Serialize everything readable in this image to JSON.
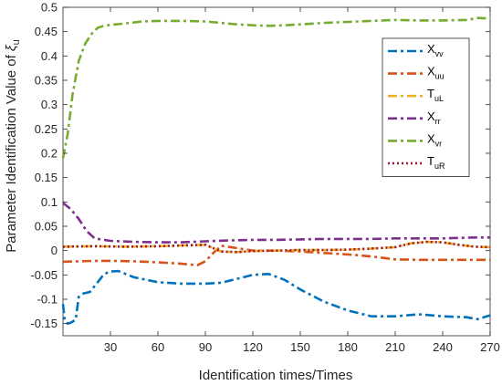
{
  "chart_data": {
    "type": "line",
    "xlabel": "Identification times/Times",
    "ylabel": {
      "main": "Parameter Identification Value of ",
      "symbol": "ξ",
      "sub": "u"
    },
    "xlim": [
      0,
      270
    ],
    "ylim": [
      -0.175,
      0.5
    ],
    "xticks": [
      30,
      60,
      90,
      120,
      150,
      180,
      210,
      240,
      270
    ],
    "yticks": [
      -0.15,
      -0.1,
      -0.05,
      0,
      0.05,
      0.1,
      0.15,
      0.2,
      0.25,
      0.3,
      0.35,
      0.4,
      0.45,
      0.5
    ],
    "ytick_labels": [
      "-0.15",
      "-0.1",
      "-0.05",
      "0",
      "0.05",
      "0.1",
      "0.15",
      "0.2",
      "0.25",
      "0.3",
      "0.35",
      "0.4",
      "0.45",
      "0.5"
    ],
    "grid": false,
    "legend_position": "top-right",
    "series": [
      {
        "name": "X",
        "sub": "vv",
        "color": "#0072BD",
        "dash": "10,4,3,4",
        "x": [
          0,
          1,
          2,
          3,
          5,
          8,
          10,
          13,
          17,
          22,
          26,
          30,
          35,
          45,
          60,
          75,
          90,
          100,
          110,
          120,
          130,
          140,
          150,
          165,
          180,
          195,
          210,
          225,
          240,
          255,
          262,
          270
        ],
        "y": [
          -0.11,
          -0.14,
          -0.148,
          -0.15,
          -0.148,
          -0.142,
          -0.095,
          -0.088,
          -0.085,
          -0.065,
          -0.048,
          -0.043,
          -0.042,
          -0.055,
          -0.065,
          -0.068,
          -0.068,
          -0.066,
          -0.058,
          -0.05,
          -0.048,
          -0.06,
          -0.08,
          -0.105,
          -0.123,
          -0.135,
          -0.135,
          -0.131,
          -0.135,
          -0.137,
          -0.141,
          -0.133
        ]
      },
      {
        "name": "X",
        "sub": "uu",
        "color": "#D95319",
        "dash": "10,4,3,4",
        "x": [
          0,
          10,
          20,
          30,
          45,
          60,
          75,
          85,
          90,
          95,
          100,
          110,
          120,
          135,
          150,
          165,
          180,
          195,
          210,
          225,
          240,
          255,
          270
        ],
        "y": [
          -0.023,
          -0.022,
          -0.021,
          -0.021,
          -0.022,
          -0.024,
          -0.027,
          -0.03,
          -0.022,
          -0.005,
          0.01,
          0.005,
          0.0,
          0.0,
          -0.002,
          -0.005,
          -0.008,
          -0.012,
          -0.018,
          -0.019,
          -0.019,
          -0.019,
          -0.019
        ]
      },
      {
        "name": "T",
        "sub": "uL",
        "color": "#EDB120",
        "dash": "10,4,3,4",
        "x": [
          0,
          20,
          40,
          60,
          80,
          90,
          95,
          100,
          110,
          120,
          135,
          150,
          165,
          180,
          195,
          210,
          220,
          230,
          240,
          250,
          260,
          270
        ],
        "y": [
          0.008,
          0.009,
          0.008,
          0.009,
          0.011,
          0.012,
          0.005,
          -0.002,
          -0.003,
          -0.001,
          0.0,
          0.001,
          0.001,
          0.002,
          0.004,
          0.007,
          0.015,
          0.018,
          0.017,
          0.012,
          0.008,
          0.007
        ]
      },
      {
        "name": "X",
        "sub": "rr",
        "color": "#7E2F8E",
        "dash": "10,4,3,4",
        "x": [
          0,
          5,
          10,
          15,
          20,
          30,
          45,
          60,
          75,
          90,
          105,
          120,
          135,
          150,
          165,
          180,
          195,
          210,
          225,
          240,
          250,
          260,
          270
        ],
        "y": [
          0.098,
          0.085,
          0.065,
          0.04,
          0.025,
          0.02,
          0.018,
          0.017,
          0.017,
          0.019,
          0.021,
          0.022,
          0.022,
          0.023,
          0.024,
          0.024,
          0.024,
          0.025,
          0.025,
          0.025,
          0.026,
          0.027,
          0.027
        ]
      },
      {
        "name": "X",
        "sub": "vr",
        "color": "#77AC30",
        "dash": "10,4,3,4",
        "x": [
          0,
          3,
          6,
          10,
          14,
          18,
          22,
          26,
          30,
          40,
          50,
          60,
          75,
          90,
          100,
          110,
          120,
          130,
          140,
          150,
          165,
          180,
          195,
          210,
          225,
          240,
          255,
          262,
          270
        ],
        "y": [
          0.19,
          0.24,
          0.32,
          0.39,
          0.425,
          0.445,
          0.458,
          0.462,
          0.464,
          0.467,
          0.471,
          0.472,
          0.472,
          0.471,
          0.468,
          0.465,
          0.463,
          0.462,
          0.463,
          0.465,
          0.468,
          0.47,
          0.472,
          0.474,
          0.473,
          0.473,
          0.474,
          0.478,
          0.477
        ]
      },
      {
        "name": "T",
        "sub": "uR",
        "color": "#A2142F",
        "dash": "2,3",
        "x": [
          0,
          20,
          40,
          60,
          80,
          90,
          95,
          100,
          110,
          120,
          135,
          150,
          165,
          180,
          195,
          210,
          220,
          230,
          240,
          250,
          260,
          270
        ],
        "y": [
          0.008,
          0.009,
          0.008,
          0.009,
          0.011,
          0.012,
          0.005,
          -0.002,
          -0.003,
          -0.001,
          0.0,
          0.001,
          0.001,
          0.002,
          0.004,
          0.007,
          0.015,
          0.018,
          0.017,
          0.012,
          0.008,
          0.007
        ]
      }
    ]
  }
}
